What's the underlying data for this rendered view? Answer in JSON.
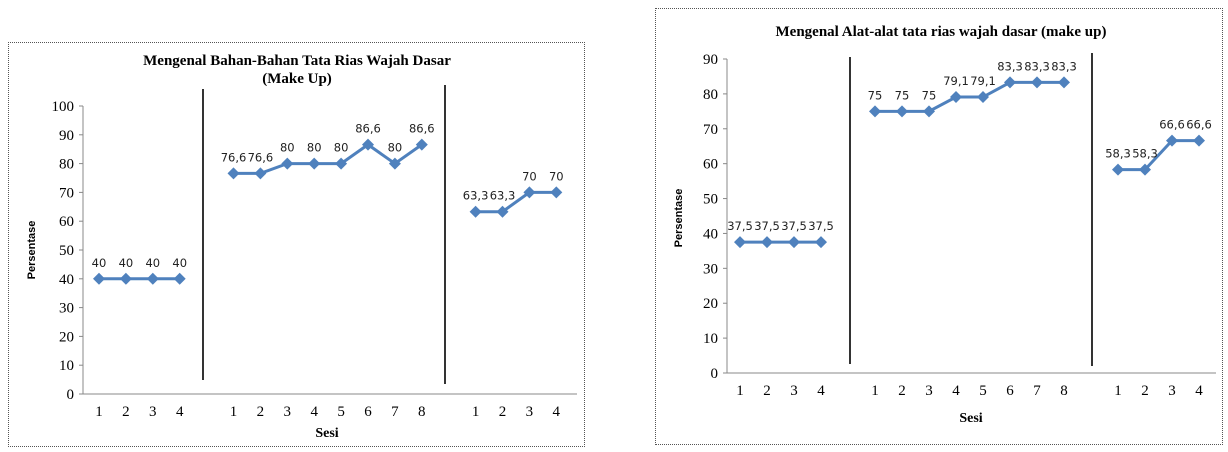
{
  "chart_data": [
    {
      "type": "line",
      "title": [
        "Mengenal Bahan-Bahan Tata Rias Wajah Dasar",
        "(Make Up)"
      ],
      "xlabel": "Sesi",
      "ylabel": "Persentase",
      "ylim": [
        0,
        100
      ],
      "yticks": [
        "0",
        "10",
        "20",
        "30",
        "40",
        "50",
        "60",
        "70",
        "80",
        "90",
        "100"
      ],
      "grid": false,
      "legend": "none",
      "color": "#4F81BD",
      "phases": [
        {
          "categories": [
            "1",
            "2",
            "3",
            "4"
          ],
          "values": [
            40,
            40,
            40,
            40
          ],
          "labels": [
            "40",
            "40",
            "40",
            "40"
          ]
        },
        {
          "categories": [
            "1",
            "2",
            "3",
            "4",
            "5",
            "6",
            "7",
            "8"
          ],
          "values": [
            76.6,
            76.6,
            80,
            80,
            80,
            86.6,
            80,
            86.6
          ],
          "labels": [
            "76,6",
            "76,6",
            "80",
            "80",
            "80",
            "86,6",
            "80",
            "86,6"
          ]
        },
        {
          "categories": [
            "1",
            "2",
            "3",
            "4"
          ],
          "values": [
            63.3,
            63.3,
            70,
            70
          ],
          "labels": [
            "63,3",
            "63,3",
            "70",
            "70"
          ]
        }
      ]
    },
    {
      "type": "line",
      "title": [
        "Mengenal Alat-alat tata rias wajah dasar (make up)"
      ],
      "xlabel": "Sesi",
      "ylabel": "Persentase",
      "ylim": [
        0,
        90
      ],
      "yticks": [
        "0",
        "10",
        "20",
        "30",
        "40",
        "50",
        "60",
        "70",
        "80",
        "90"
      ],
      "grid": false,
      "legend": "none",
      "color": "#4F81BD",
      "phases": [
        {
          "categories": [
            "1",
            "2",
            "3",
            "4"
          ],
          "values": [
            37.5,
            37.5,
            37.5,
            37.5
          ],
          "labels": [
            "37,5",
            "37,5",
            "37,5",
            "37,5"
          ]
        },
        {
          "categories": [
            "1",
            "2",
            "3",
            "4",
            "5",
            "6",
            "7",
            "8"
          ],
          "values": [
            75,
            75,
            75,
            79.1,
            79.1,
            83.3,
            83.3,
            83.3
          ],
          "labels": [
            "75",
            "75",
            "75",
            "79,1",
            "79,1",
            "83,3",
            "83,3",
            "83,3"
          ]
        },
        {
          "categories": [
            "1",
            "2",
            "3",
            "4"
          ],
          "values": [
            58.3,
            58.3,
            66.6,
            66.6
          ],
          "labels": [
            "58,3",
            "58,3",
            "66,6",
            "66,6"
          ]
        }
      ]
    }
  ]
}
